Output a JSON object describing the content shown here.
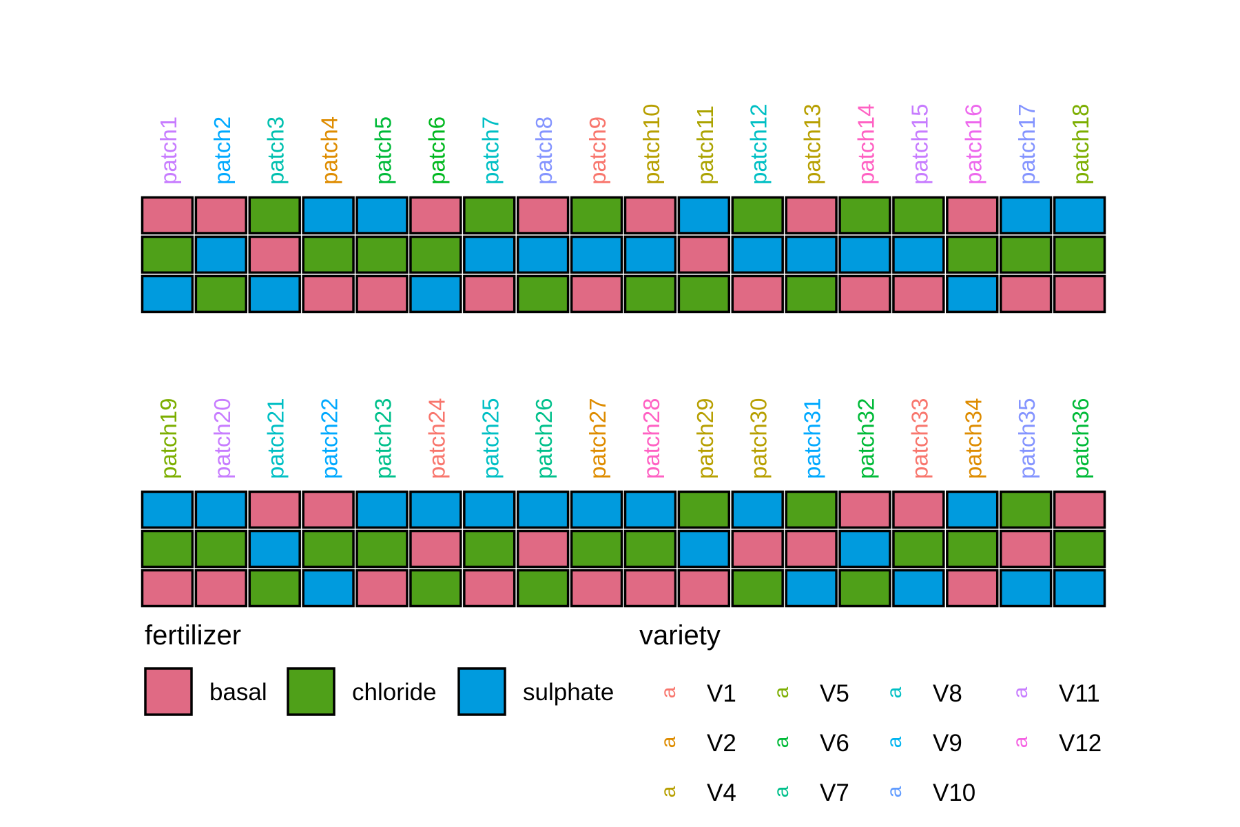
{
  "chart_data": {
    "type": "heatmap",
    "title": "",
    "colors": {
      "basal": "#e06a84",
      "chloride": "#4fa019",
      "sulphate": "#009bde"
    },
    "panels": [
      {
        "patches": [
          {
            "label": "patch1",
            "label_color": "#c77cff",
            "cells": [
              "basal",
              "chloride",
              "sulphate"
            ]
          },
          {
            "label": "patch2",
            "label_color": "#00a9ff",
            "cells": [
              "basal",
              "sulphate",
              "chloride"
            ]
          },
          {
            "label": "patch3",
            "label_color": "#00c0af",
            "cells": [
              "chloride",
              "basal",
              "sulphate"
            ]
          },
          {
            "label": "patch4",
            "label_color": "#de8c00",
            "cells": [
              "sulphate",
              "chloride",
              "basal"
            ]
          },
          {
            "label": "patch5",
            "label_color": "#00ba38",
            "cells": [
              "sulphate",
              "chloride",
              "basal"
            ]
          },
          {
            "label": "patch6",
            "label_color": "#00b81f",
            "cells": [
              "basal",
              "chloride",
              "sulphate"
            ]
          },
          {
            "label": "patch7",
            "label_color": "#00bfc4",
            "cells": [
              "chloride",
              "sulphate",
              "basal"
            ]
          },
          {
            "label": "patch8",
            "label_color": "#8494ff",
            "cells": [
              "basal",
              "sulphate",
              "chloride"
            ]
          },
          {
            "label": "patch9",
            "label_color": "#f8766d",
            "cells": [
              "chloride",
              "sulphate",
              "basal"
            ]
          },
          {
            "label": "patch10",
            "label_color": "#b79f00",
            "cells": [
              "basal",
              "sulphate",
              "chloride"
            ]
          },
          {
            "label": "patch11",
            "label_color": "#aba300",
            "cells": [
              "sulphate",
              "basal",
              "chloride"
            ]
          },
          {
            "label": "patch12",
            "label_color": "#00bfc4",
            "cells": [
              "chloride",
              "sulphate",
              "basal"
            ]
          },
          {
            "label": "patch13",
            "label_color": "#b79f00",
            "cells": [
              "basal",
              "sulphate",
              "chloride"
            ]
          },
          {
            "label": "patch14",
            "label_color": "#ff61c3",
            "cells": [
              "chloride",
              "sulphate",
              "basal"
            ]
          },
          {
            "label": "patch15",
            "label_color": "#c77cff",
            "cells": [
              "chloride",
              "sulphate",
              "basal"
            ]
          },
          {
            "label": "patch16",
            "label_color": "#ed68ed",
            "cells": [
              "basal",
              "chloride",
              "sulphate"
            ]
          },
          {
            "label": "patch17",
            "label_color": "#8494ff",
            "cells": [
              "sulphate",
              "chloride",
              "basal"
            ]
          },
          {
            "label": "patch18",
            "label_color": "#7cae00",
            "cells": [
              "sulphate",
              "chloride",
              "basal"
            ]
          }
        ]
      },
      {
        "patches": [
          {
            "label": "patch19",
            "label_color": "#7cae00",
            "cells": [
              "sulphate",
              "chloride",
              "basal"
            ]
          },
          {
            "label": "patch20",
            "label_color": "#c77cff",
            "cells": [
              "sulphate",
              "chloride",
              "basal"
            ]
          },
          {
            "label": "patch21",
            "label_color": "#00bfc4",
            "cells": [
              "basal",
              "sulphate",
              "chloride"
            ]
          },
          {
            "label": "patch22",
            "label_color": "#00a9ff",
            "cells": [
              "basal",
              "chloride",
              "sulphate"
            ]
          },
          {
            "label": "patch23",
            "label_color": "#00c08b",
            "cells": [
              "sulphate",
              "chloride",
              "basal"
            ]
          },
          {
            "label": "patch24",
            "label_color": "#f8766d",
            "cells": [
              "sulphate",
              "basal",
              "chloride"
            ]
          },
          {
            "label": "patch25",
            "label_color": "#00bfc4",
            "cells": [
              "sulphate",
              "chloride",
              "basal"
            ]
          },
          {
            "label": "patch26",
            "label_color": "#00c08b",
            "cells": [
              "sulphate",
              "basal",
              "chloride"
            ]
          },
          {
            "label": "patch27",
            "label_color": "#de8c00",
            "cells": [
              "sulphate",
              "chloride",
              "basal"
            ]
          },
          {
            "label": "patch28",
            "label_color": "#ff61c3",
            "cells": [
              "sulphate",
              "chloride",
              "basal"
            ]
          },
          {
            "label": "patch29",
            "label_color": "#b79f00",
            "cells": [
              "chloride",
              "sulphate",
              "basal"
            ]
          },
          {
            "label": "patch30",
            "label_color": "#b79f00",
            "cells": [
              "sulphate",
              "basal",
              "chloride"
            ]
          },
          {
            "label": "patch31",
            "label_color": "#00a9ff",
            "cells": [
              "chloride",
              "basal",
              "sulphate"
            ]
          },
          {
            "label": "patch32",
            "label_color": "#00ba38",
            "cells": [
              "basal",
              "sulphate",
              "chloride"
            ]
          },
          {
            "label": "patch33",
            "label_color": "#f8766d",
            "cells": [
              "basal",
              "chloride",
              "sulphate"
            ]
          },
          {
            "label": "patch34",
            "label_color": "#de8c00",
            "cells": [
              "sulphate",
              "chloride",
              "basal"
            ]
          },
          {
            "label": "patch35",
            "label_color": "#8494ff",
            "cells": [
              "chloride",
              "basal",
              "sulphate"
            ]
          },
          {
            "label": "patch36",
            "label_color": "#00ba38",
            "cells": [
              "basal",
              "chloride",
              "sulphate"
            ]
          }
        ]
      }
    ],
    "legend": {
      "position": "bottom",
      "fertilizer": {
        "title": "fertilizer",
        "items": [
          "basal",
          "chloride",
          "sulphate"
        ]
      },
      "variety": {
        "title": "variety",
        "glyph": "a",
        "items": [
          {
            "label": "V1",
            "color": "#f8766d"
          },
          {
            "label": "V2",
            "color": "#de8c00"
          },
          {
            "label": "V4",
            "color": "#b79f00"
          },
          {
            "label": "V5",
            "color": "#7cae00"
          },
          {
            "label": "V6",
            "color": "#00ba38"
          },
          {
            "label": "V7",
            "color": "#00c08b"
          },
          {
            "label": "V8",
            "color": "#00bfc4"
          },
          {
            "label": "V9",
            "color": "#00b4f0"
          },
          {
            "label": "V10",
            "color": "#619cff"
          },
          {
            "label": "V11",
            "color": "#c77cff"
          },
          {
            "label": "V12",
            "color": "#f564e3"
          }
        ]
      }
    }
  }
}
